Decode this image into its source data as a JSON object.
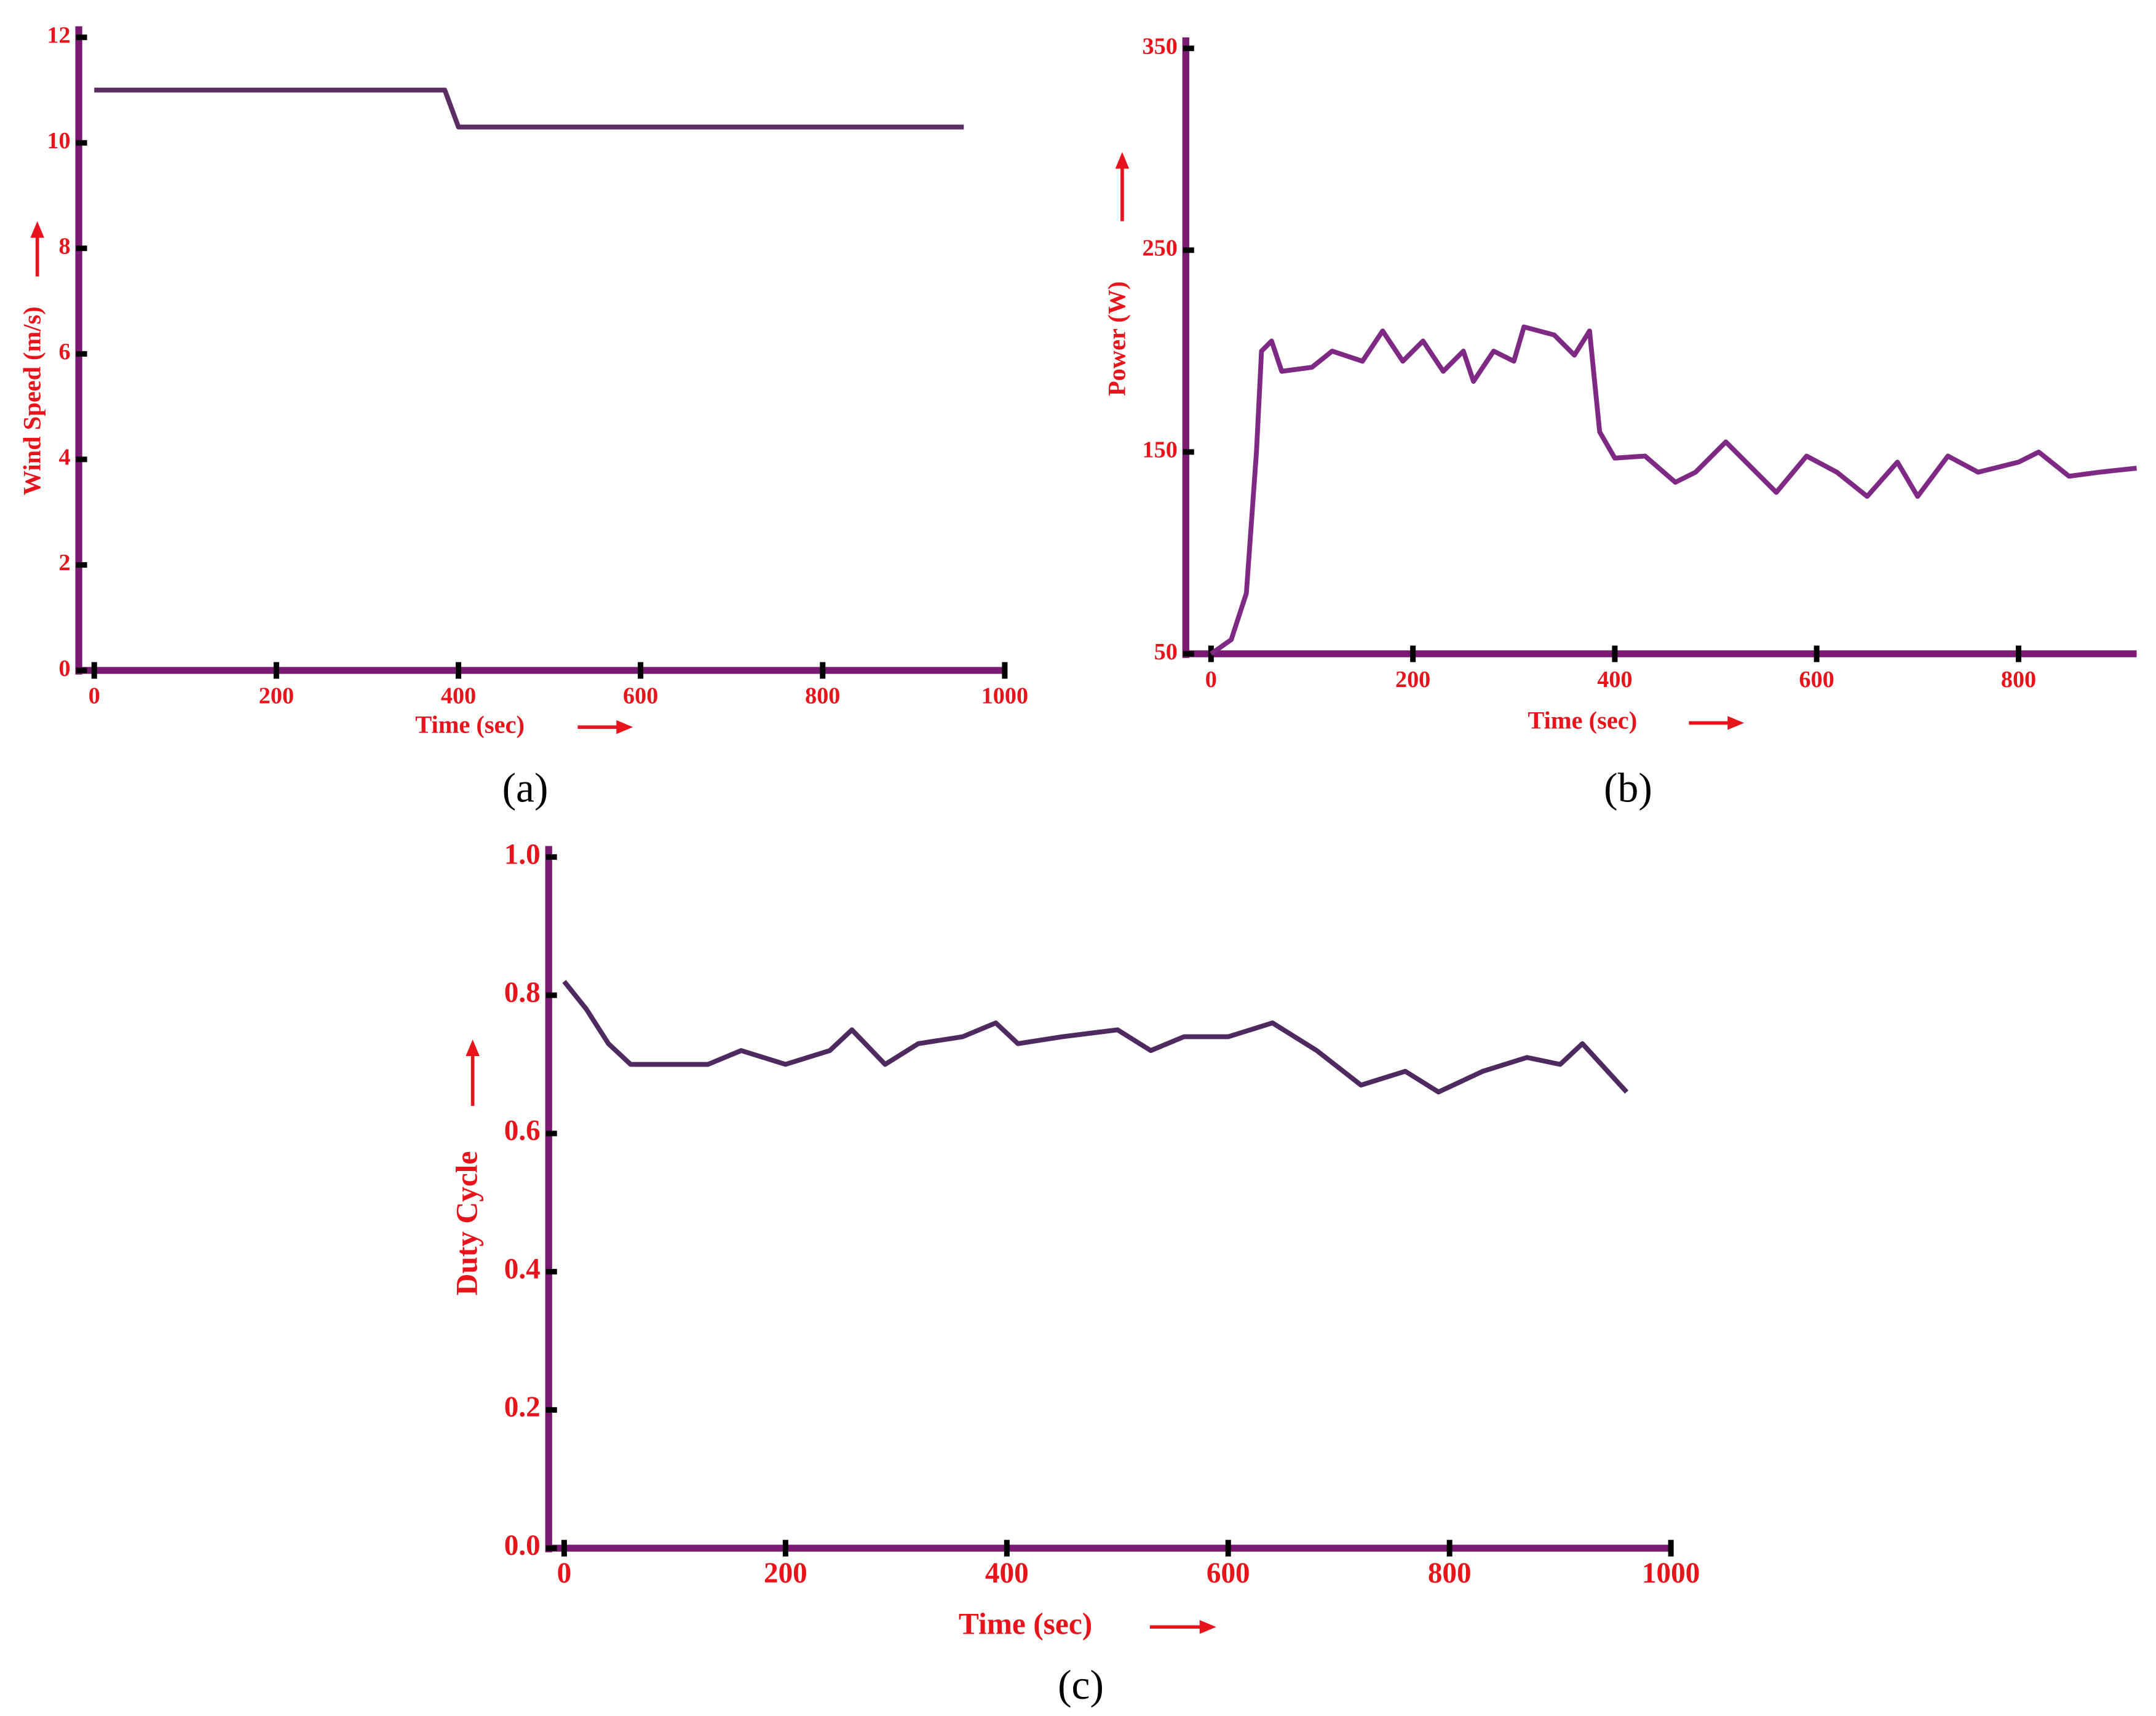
{
  "chart_data": [
    {
      "type": "line",
      "y_label": "Wind Speed (m/s)",
      "x_label": "Time (sec)",
      "caption": "(a)",
      "x": [
        0,
        385,
        400,
        955
      ],
      "series": [
        {
          "color": "#5b2e63",
          "values": [
            11,
            11,
            10.3,
            10.3
          ]
        }
      ],
      "xlim": [
        -17,
        1000
      ],
      "xticks": [
        0,
        200,
        400,
        600,
        800,
        1000
      ],
      "ylim": [
        0,
        12
      ],
      "yticks": [
        0,
        2,
        4,
        6,
        8,
        10,
        12
      ]
    },
    {
      "type": "line",
      "y_label": "Power (W)",
      "x_label": "Time (sec)",
      "caption": "(b)",
      "x": [
        0,
        20,
        35,
        45,
        50,
        60,
        70,
        100,
        120,
        150,
        170,
        190,
        210,
        230,
        250,
        260,
        280,
        300,
        310,
        340,
        360,
        375,
        385,
        400,
        430,
        460,
        480,
        510,
        540,
        560,
        590,
        620,
        650,
        680,
        700,
        730,
        760,
        800,
        820,
        850,
        880,
        917
      ],
      "series": [
        {
          "color": "#7e2a84",
          "values": [
            50,
            57,
            80,
            150,
            200,
            205,
            190,
            192,
            200,
            195,
            210,
            195,
            205,
            190,
            200,
            185,
            200,
            195,
            212,
            208,
            198,
            210,
            160,
            147,
            148,
            135,
            140,
            155,
            140,
            130,
            148,
            140,
            128,
            145,
            128,
            148,
            140,
            145,
            150,
            138,
            140,
            142
          ]
        }
      ],
      "xlim": [
        -25,
        917
      ],
      "xticks": [
        0,
        200,
        400,
        600,
        800
      ],
      "ylim": [
        50,
        350
      ],
      "yticks": [
        50,
        150,
        250,
        350
      ]
    },
    {
      "type": "line",
      "y_label": "Duty Cycle",
      "x_label": "Time (sec)",
      "caption": "(c)",
      "x": [
        0,
        20,
        40,
        60,
        100,
        130,
        160,
        200,
        240,
        260,
        290,
        320,
        360,
        390,
        410,
        450,
        500,
        530,
        560,
        600,
        640,
        680,
        720,
        760,
        790,
        830,
        870,
        900,
        920,
        960
      ],
      "series": [
        {
          "color": "#4e2a60",
          "values": [
            0.82,
            0.78,
            0.73,
            0.7,
            0.7,
            0.7,
            0.72,
            0.7,
            0.72,
            0.75,
            0.7,
            0.73,
            0.74,
            0.76,
            0.73,
            0.74,
            0.75,
            0.72,
            0.74,
            0.74,
            0.76,
            0.72,
            0.67,
            0.69,
            0.66,
            0.69,
            0.71,
            0.7,
            0.73,
            0.66
          ]
        }
      ],
      "xlim": [
        -14,
        1000
      ],
      "xticks": [
        0,
        200,
        400,
        600,
        800,
        1000
      ],
      "ylim": [
        0,
        1
      ],
      "yticks": [
        {
          "value": 0,
          "label": "0.0"
        },
        0.2,
        0.4,
        0.6,
        0.8,
        {
          "value": 1,
          "label": "1.0"
        }
      ]
    }
  ]
}
